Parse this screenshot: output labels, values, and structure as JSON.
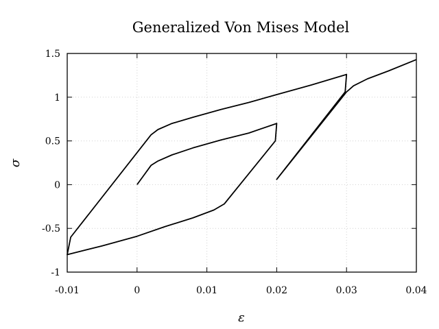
{
  "chart_data": {
    "type": "line",
    "title": "Generalized Von Mises Model",
    "xlabel": "ε",
    "ylabel": "σ",
    "xlim": [
      -0.01,
      0.04
    ],
    "ylim": [
      -1,
      1.5
    ],
    "x_ticks": [
      -0.01,
      0,
      0.01,
      0.02,
      0.03,
      0.04
    ],
    "y_ticks": [
      -1,
      -0.5,
      0,
      0.5,
      1,
      1.5
    ],
    "x_tick_labels": [
      "-0.01",
      "0",
      "0.01",
      "0.02",
      "0.03",
      "0.04"
    ],
    "y_tick_labels": [
      "-1",
      "-0.5",
      "0",
      "0.5",
      "1",
      "1.5"
    ],
    "grid": true,
    "series": [
      {
        "color": "#000000",
        "points": [
          [
            0,
            0
          ],
          [
            0.002,
            0.22
          ],
          [
            0.003,
            0.27
          ],
          [
            0.005,
            0.34
          ],
          [
            0.008,
            0.42
          ],
          [
            0.012,
            0.51
          ],
          [
            0.016,
            0.59
          ],
          [
            0.02,
            0.7
          ],
          [
            0.0198,
            0.5
          ],
          [
            0.0125,
            -0.22
          ],
          [
            0.011,
            -0.29
          ],
          [
            0.008,
            -0.38
          ],
          [
            0.004,
            -0.48
          ],
          [
            0.0,
            -0.59
          ],
          [
            -0.005,
            -0.7
          ],
          [
            -0.01,
            -0.8
          ],
          [
            -0.0095,
            -0.6
          ],
          [
            0.002,
            0.57
          ],
          [
            0.003,
            0.63
          ],
          [
            0.005,
            0.7
          ],
          [
            0.008,
            0.77
          ],
          [
            0.012,
            0.86
          ],
          [
            0.016,
            0.94
          ],
          [
            0.02,
            1.03
          ],
          [
            0.025,
            1.14
          ],
          [
            0.03,
            1.26
          ],
          [
            0.0298,
            1.06
          ],
          [
            0.02,
            0.06
          ],
          [
            0.03,
            1.06
          ],
          [
            0.031,
            1.13
          ],
          [
            0.033,
            1.21
          ],
          [
            0.036,
            1.3
          ],
          [
            0.04,
            1.43
          ]
        ]
      }
    ]
  }
}
